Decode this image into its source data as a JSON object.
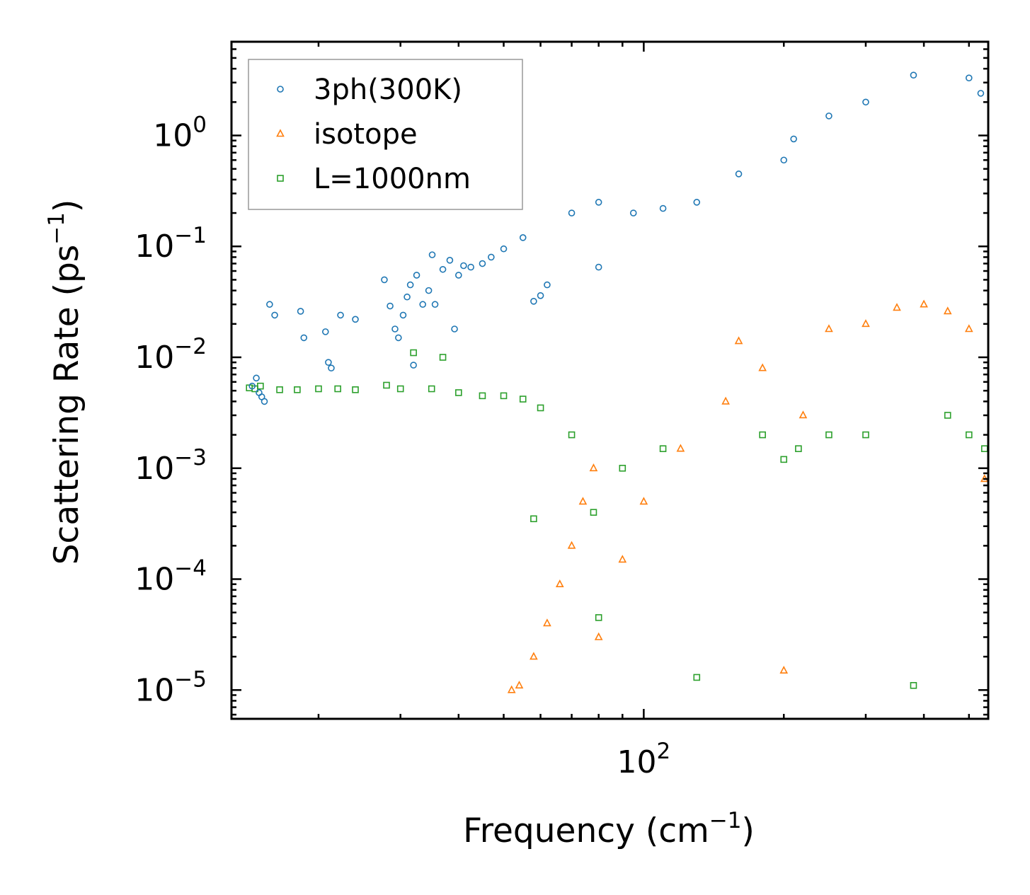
{
  "chart_data": {
    "type": "scatter",
    "title": "",
    "xlabel": "Frequency (cm",
    "xlabel_sup": "−1",
    "xlabel_tail": ")",
    "ylabel": "Scattering Rate (ps",
    "ylabel_sup": "−1",
    "ylabel_tail": ")",
    "xscale": "log",
    "yscale": "log",
    "xlim": [
      13,
      550
    ],
    "ylim": [
      5.5e-06,
      7.0
    ],
    "x_ticks": [
      {
        "value": 100,
        "base": "10",
        "exp": "2"
      }
    ],
    "y_ticks": [
      {
        "value": 1e-05,
        "base": "10",
        "exp": "−5"
      },
      {
        "value": 0.0001,
        "base": "10",
        "exp": "−4"
      },
      {
        "value": 0.001,
        "base": "10",
        "exp": "−3"
      },
      {
        "value": 0.01,
        "base": "10",
        "exp": "−2"
      },
      {
        "value": 0.1,
        "base": "10",
        "exp": "−1"
      },
      {
        "value": 1,
        "base": "10",
        "exp": "0"
      }
    ],
    "legend_position": "top-left",
    "series": [
      {
        "name": "3ph(300K)",
        "marker": "circle",
        "color": "#1f77b4",
        "points": [
          [
            14.4,
            0.0055
          ],
          [
            14.7,
            0.0065
          ],
          [
            14.9,
            0.0048
          ],
          [
            15.1,
            0.0044
          ],
          [
            15.3,
            0.004
          ],
          [
            15.7,
            0.03
          ],
          [
            16.1,
            0.024
          ],
          [
            18.3,
            0.026
          ],
          [
            18.6,
            0.015
          ],
          [
            20.7,
            0.017
          ],
          [
            21,
            0.009
          ],
          [
            21.3,
            0.008
          ],
          [
            22.3,
            0.024
          ],
          [
            24,
            0.022
          ],
          [
            27.7,
            0.05
          ],
          [
            28.5,
            0.029
          ],
          [
            29.2,
            0.018
          ],
          [
            29.7,
            0.015
          ],
          [
            30.4,
            0.024
          ],
          [
            31,
            0.035
          ],
          [
            31.5,
            0.045
          ],
          [
            32,
            0.0085
          ],
          [
            32.5,
            0.055
          ],
          [
            33.5,
            0.03
          ],
          [
            34.5,
            0.04
          ],
          [
            35.1,
            0.084
          ],
          [
            35.6,
            0.03
          ],
          [
            37,
            0.062
          ],
          [
            38.3,
            0.075
          ],
          [
            39.2,
            0.018
          ],
          [
            40,
            0.055
          ],
          [
            41,
            0.067
          ],
          [
            42.5,
            0.065
          ],
          [
            45,
            0.07
          ],
          [
            47,
            0.08
          ],
          [
            50,
            0.095
          ],
          [
            55,
            0.12
          ],
          [
            58,
            0.032
          ],
          [
            60,
            0.036
          ],
          [
            62,
            0.045
          ],
          [
            70,
            0.2
          ],
          [
            80,
            0.25
          ],
          [
            80,
            0.065
          ],
          [
            95,
            0.2
          ],
          [
            110,
            0.22
          ],
          [
            130,
            0.25
          ],
          [
            160,
            0.45
          ],
          [
            200,
            0.6
          ],
          [
            210,
            0.93
          ],
          [
            250,
            1.5
          ],
          [
            300,
            2.0
          ],
          [
            380,
            3.5
          ],
          [
            500,
            3.3
          ],
          [
            530,
            2.4
          ]
        ]
      },
      {
        "name": "isotope",
        "marker": "triangle",
        "color": "#ff7f0e",
        "points": [
          [
            52,
            1e-05
          ],
          [
            54,
            1.1e-05
          ],
          [
            58,
            2e-05
          ],
          [
            62,
            4e-05
          ],
          [
            66,
            9e-05
          ],
          [
            70,
            0.0002
          ],
          [
            74,
            0.0005
          ],
          [
            78,
            0.001
          ],
          [
            80,
            3e-05
          ],
          [
            90,
            0.00015
          ],
          [
            100,
            0.0005
          ],
          [
            120,
            0.0015
          ],
          [
            150,
            0.004
          ],
          [
            160,
            0.014
          ],
          [
            180,
            0.008
          ],
          [
            200,
            1.5e-05
          ],
          [
            220,
            0.003
          ],
          [
            250,
            0.018
          ],
          [
            300,
            0.02
          ],
          [
            350,
            0.028
          ],
          [
            400,
            0.03
          ],
          [
            450,
            0.026
          ],
          [
            500,
            0.018
          ],
          [
            540,
            0.0008
          ]
        ]
      },
      {
        "name": "L=1000nm",
        "marker": "square",
        "color": "#2ca02c",
        "points": [
          [
            14.2,
            0.0053
          ],
          [
            14.6,
            0.0052
          ],
          [
            15,
            0.0055
          ],
          [
            16.5,
            0.0051
          ],
          [
            18,
            0.0051
          ],
          [
            20,
            0.0052
          ],
          [
            22,
            0.0052
          ],
          [
            24,
            0.0051
          ],
          [
            28,
            0.0056
          ],
          [
            30,
            0.0052
          ],
          [
            32,
            0.011
          ],
          [
            35,
            0.0052
          ],
          [
            37,
            0.01
          ],
          [
            40,
            0.0048
          ],
          [
            45,
            0.0045
          ],
          [
            50,
            0.0045
          ],
          [
            55,
            0.0042
          ],
          [
            58,
            0.00035
          ],
          [
            60,
            0.0035
          ],
          [
            70,
            0.002
          ],
          [
            78,
            0.0004
          ],
          [
            80,
            4.5e-05
          ],
          [
            90,
            0.001
          ],
          [
            110,
            0.0015
          ],
          [
            130,
            1.3e-05
          ],
          [
            180,
            0.002
          ],
          [
            200,
            0.0012
          ],
          [
            215,
            0.0015
          ],
          [
            250,
            0.002
          ],
          [
            300,
            0.002
          ],
          [
            380,
            1.1e-05
          ],
          [
            450,
            0.003
          ],
          [
            500,
            0.002
          ],
          [
            540,
            0.0015
          ]
        ]
      }
    ]
  }
}
